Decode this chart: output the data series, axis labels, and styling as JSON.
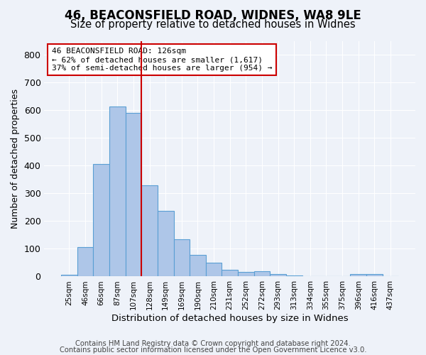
{
  "title1": "46, BEACONSFIELD ROAD, WIDNES, WA8 9LE",
  "title2": "Size of property relative to detached houses in Widnes",
  "xlabel": "Distribution of detached houses by size in Widnes",
  "ylabel": "Number of detached properties",
  "bin_labels": [
    "25sqm",
    "46sqm",
    "66sqm",
    "87sqm",
    "107sqm",
    "128sqm",
    "149sqm",
    "169sqm",
    "190sqm",
    "210sqm",
    "231sqm",
    "252sqm",
    "272sqm",
    "293sqm",
    "313sqm",
    "334sqm",
    "355sqm",
    "375sqm",
    "396sqm",
    "416sqm",
    "437sqm"
  ],
  "bin_values": [
    7,
    106,
    405,
    612,
    590,
    330,
    237,
    135,
    79,
    51,
    24,
    16,
    18,
    8,
    5,
    2,
    0,
    0,
    9,
    8,
    0
  ],
  "bar_color": "#aec6e8",
  "bar_edge_color": "#5a9fd4",
  "vline_pos": 4.5,
  "vline_color": "#cc0000",
  "annotation_text": "46 BEACONSFIELD ROAD: 126sqm\n← 62% of detached houses are smaller (1,617)\n37% of semi-detached houses are larger (954) →",
  "annotation_box_color": "#ffffff",
  "annotation_box_edge": "#cc0000",
  "ylim": [
    0,
    850
  ],
  "yticks": [
    0,
    100,
    200,
    300,
    400,
    500,
    600,
    700,
    800
  ],
  "footer1": "Contains HM Land Registry data © Crown copyright and database right 2024.",
  "footer2": "Contains public sector information licensed under the Open Government Licence v3.0.",
  "bg_color": "#eef2f9",
  "plot_bg_color": "#eef2f9",
  "title1_fontsize": 12,
  "title2_fontsize": 10.5,
  "xlabel_fontsize": 9.5,
  "ylabel_fontsize": 9,
  "footer_fontsize": 7.2
}
